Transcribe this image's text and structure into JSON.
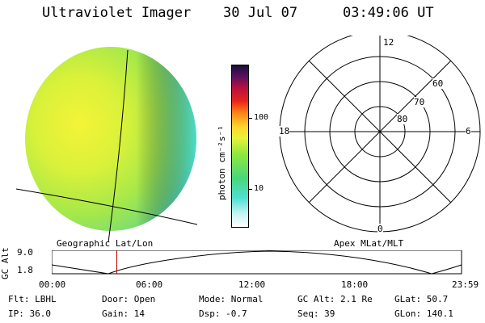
{
  "header": {
    "title": "Ultraviolet Imager",
    "date": "30 Jul 07",
    "time": "03:49:06 UT"
  },
  "colorbar": {
    "unit_label": "photon cm⁻²s⁻¹",
    "tick_100": "100",
    "tick_10": "10"
  },
  "panels": {
    "geo_label": "Geographic Lat/Lon",
    "apex_label": "Apex MLat/MLT"
  },
  "polar": {
    "mlt_12": "12",
    "mlt_18": "18",
    "mlt_6": "6",
    "mlt_0": "0",
    "lat_60": "60",
    "lat_70": "70",
    "lat_80": "80"
  },
  "timeline": {
    "ylabel": "GC Alt",
    "y_top": "9.0",
    "y_bottom": "1.8",
    "x_ticks": [
      "00:00",
      "06:00",
      "12:00",
      "18:00",
      "23:59"
    ],
    "current_time_fraction": 0.158
  },
  "info": {
    "flt": "Flt: LBHL",
    "door": "Door: Open",
    "mode": "Mode: Normal",
    "gcalt": "GC Alt: 2.1 Re",
    "glat": "GLat:  50.7",
    "ip": "IP: 36.0",
    "gain": "Gain: 14",
    "dsp": "Dsp:   -0.7",
    "seq": "Seq: 39",
    "glon": "GLon: 140.1"
  }
}
